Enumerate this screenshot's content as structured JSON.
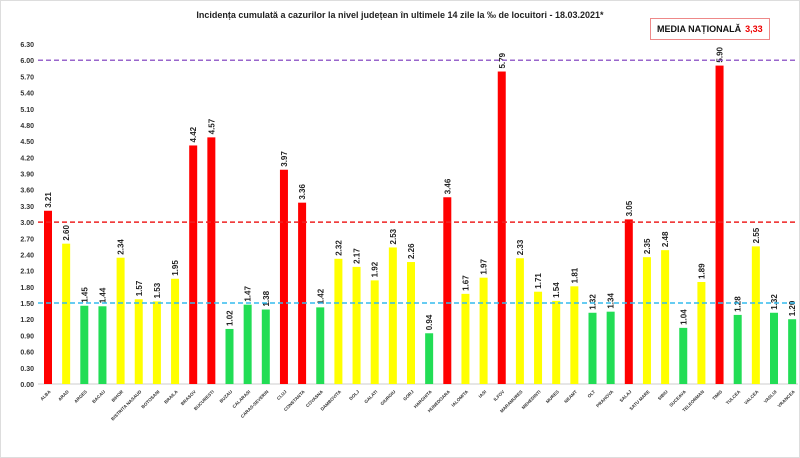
{
  "chart_data": {
    "type": "bar",
    "title": "Incidența cumulată a cazurilor la nivel județean în ultimele 14 zile la ‰ de locuitori - 18.03.2021*",
    "national_average": {
      "label": "MEDIA NAȚIONALĂ",
      "value": "3,33"
    },
    "categories": [
      "ALBA",
      "ARAD",
      "ARGES",
      "BACAU",
      "BIHOR",
      "BISTRITA NASAUD",
      "BOTOSANI",
      "BRAILA",
      "BRASOV",
      "BUCURESTI",
      "BUZAU",
      "CALARASI",
      "CARAS-SEVERIN",
      "CLUJ",
      "CONSTANTA",
      "COVASNA",
      "DAMBOVITA",
      "DOLJ",
      "GALATI",
      "GIURGIU",
      "GORJ",
      "HARGHITA",
      "HUNEDOARA",
      "IALOMITA",
      "IASI",
      "ILFOV",
      "MARAMURES",
      "MEHEDINTI",
      "MURES",
      "NEAMT",
      "OLT",
      "PRAHOVA",
      "SALAJ",
      "SATU MARE",
      "SIBIU",
      "SUCEAVA",
      "TELEORMAN",
      "TIMIS",
      "TULCEA",
      "VALCEA",
      "VASLUI",
      "VRANCEA"
    ],
    "values": [
      3.21,
      2.6,
      1.45,
      1.44,
      2.34,
      1.57,
      1.53,
      1.95,
      4.42,
      4.57,
      1.02,
      1.47,
      1.38,
      3.97,
      3.36,
      1.42,
      2.32,
      2.17,
      1.92,
      2.53,
      2.26,
      0.94,
      3.46,
      1.67,
      1.97,
      5.79,
      2.33,
      1.71,
      1.54,
      1.81,
      1.32,
      1.34,
      3.05,
      2.35,
      2.48,
      1.04,
      1.89,
      5.9,
      1.28,
      2.55,
      1.32,
      1.2
    ],
    "ylim": [
      0,
      6.3
    ],
    "yticks": [
      "0.00",
      "0.30",
      "0.60",
      "0.90",
      "1.20",
      "1.50",
      "1.80",
      "2.10",
      "2.40",
      "2.70",
      "3.00",
      "3.30",
      "3.60",
      "3.90",
      "4.20",
      "4.50",
      "4.80",
      "5.10",
      "5.40",
      "5.70",
      "6.00",
      "6.30"
    ],
    "thresholds": [
      {
        "value": 6.0,
        "color": "#9966cc"
      },
      {
        "value": 3.0,
        "color": "#ee2222"
      },
      {
        "value": 1.5,
        "color": "#33bbee"
      }
    ],
    "colors": {
      "high": "#ff0000",
      "medium": "#ffff00",
      "low": "#22dd55"
    },
    "grid": false,
    "legend": "none"
  }
}
